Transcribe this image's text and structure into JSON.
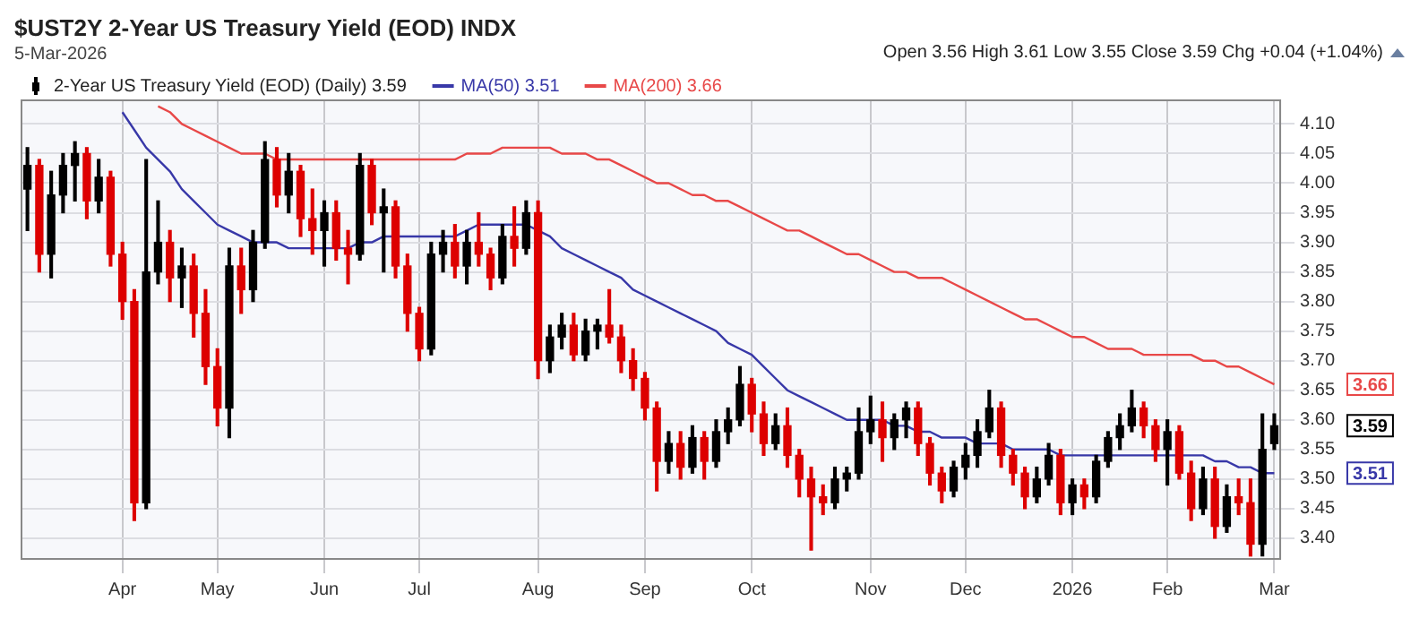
{
  "chart_data": {
    "type": "candlestick",
    "title": "$UST2Y 2-Year US Treasury Yield (EOD) INDX",
    "subtitle": "5-Mar-2026",
    "annotations": [
      "Open 3.56 High 3.61 Low 3.55 Close 3.59 Chg +0.04 (+1.04%)",
      "3.66",
      "3.59",
      "3.51"
    ],
    "categories": [
      null,
      null,
      null,
      null,
      null,
      null,
      null,
      null,
      "Apr",
      null,
      null,
      null,
      null,
      null,
      null,
      null,
      "May",
      null,
      null,
      null,
      null,
      null,
      null,
      null,
      null,
      "Jun",
      null,
      null,
      null,
      null,
      null,
      null,
      null,
      "Jul",
      null,
      null,
      null,
      null,
      null,
      null,
      null,
      null,
      null,
      "Aug",
      null,
      null,
      null,
      null,
      null,
      null,
      null,
      null,
      "Sep",
      null,
      null,
      null,
      null,
      null,
      null,
      null,
      null,
      "Oct",
      null,
      null,
      null,
      null,
      null,
      null,
      null,
      null,
      null,
      "Nov",
      null,
      null,
      null,
      null,
      null,
      null,
      null,
      "Dec",
      null,
      null,
      null,
      null,
      null,
      null,
      null,
      null,
      "2026",
      null,
      null,
      null,
      null,
      null,
      null,
      null,
      "Feb",
      null,
      null,
      null,
      null,
      null,
      null,
      null,
      null,
      "Mar"
    ],
    "series": [
      {
        "name": "2-Year US Treasury Yield (EOD) (Daily) 3.59",
        "color": "#000000",
        "ohlc": [
          [
            3.99,
            4.06,
            3.92,
            4.03
          ],
          [
            4.03,
            4.04,
            3.85,
            3.88
          ],
          [
            3.88,
            4.02,
            3.84,
            3.98
          ],
          [
            3.98,
            4.05,
            3.95,
            4.03
          ],
          [
            4.03,
            4.07,
            3.97,
            4.05
          ],
          [
            4.05,
            4.06,
            3.94,
            3.97
          ],
          [
            3.97,
            4.04,
            3.95,
            4.01
          ],
          [
            4.01,
            4.02,
            3.86,
            3.88
          ],
          [
            3.88,
            3.9,
            3.77,
            3.8
          ],
          [
            3.8,
            3.82,
            3.43,
            3.46
          ],
          [
            3.46,
            4.04,
            3.45,
            3.85
          ],
          [
            3.85,
            3.97,
            3.83,
            3.9
          ],
          [
            3.9,
            3.92,
            3.8,
            3.84
          ],
          [
            3.84,
            3.89,
            3.79,
            3.86
          ],
          [
            3.86,
            3.88,
            3.74,
            3.78
          ],
          [
            3.78,
            3.82,
            3.66,
            3.69
          ],
          [
            3.69,
            3.72,
            3.59,
            3.62
          ],
          [
            3.62,
            3.89,
            3.57,
            3.86
          ],
          [
            3.86,
            3.89,
            3.78,
            3.82
          ],
          [
            3.82,
            3.92,
            3.8,
            3.9
          ],
          [
            3.9,
            4.07,
            3.89,
            4.04
          ],
          [
            4.04,
            4.06,
            3.96,
            3.98
          ],
          [
            3.98,
            4.05,
            3.95,
            4.02
          ],
          [
            4.02,
            4.03,
            3.91,
            3.94
          ],
          [
            3.94,
            3.99,
            3.88,
            3.92
          ],
          [
            3.92,
            3.97,
            3.86,
            3.95
          ],
          [
            3.95,
            3.97,
            3.87,
            3.89
          ],
          [
            3.89,
            3.92,
            3.83,
            3.88
          ],
          [
            3.88,
            4.05,
            3.87,
            4.03
          ],
          [
            4.03,
            4.04,
            3.93,
            3.95
          ],
          [
            3.95,
            3.99,
            3.85,
            3.96
          ],
          [
            3.96,
            3.97,
            3.84,
            3.86
          ],
          [
            3.86,
            3.88,
            3.75,
            3.78
          ],
          [
            3.78,
            3.79,
            3.7,
            3.72
          ],
          [
            3.72,
            3.9,
            3.71,
            3.88
          ],
          [
            3.88,
            3.92,
            3.85,
            3.9
          ],
          [
            3.9,
            3.93,
            3.84,
            3.86
          ],
          [
            3.86,
            3.92,
            3.83,
            3.9
          ],
          [
            3.9,
            3.95,
            3.86,
            3.88
          ],
          [
            3.88,
            3.89,
            3.82,
            3.84
          ],
          [
            3.84,
            3.93,
            3.83,
            3.91
          ],
          [
            3.91,
            3.96,
            3.86,
            3.89
          ],
          [
            3.89,
            3.97,
            3.88,
            3.95
          ],
          [
            3.95,
            3.97,
            3.67,
            3.7
          ],
          [
            3.7,
            3.76,
            3.68,
            3.74
          ],
          [
            3.74,
            3.78,
            3.72,
            3.76
          ],
          [
            3.76,
            3.78,
            3.7,
            3.71
          ],
          [
            3.71,
            3.77,
            3.7,
            3.75
          ],
          [
            3.75,
            3.77,
            3.72,
            3.76
          ],
          [
            3.76,
            3.82,
            3.73,
            3.74
          ],
          [
            3.74,
            3.76,
            3.68,
            3.7
          ],
          [
            3.7,
            3.72,
            3.65,
            3.67
          ],
          [
            3.67,
            3.68,
            3.6,
            3.62
          ],
          [
            3.62,
            3.63,
            3.48,
            3.53
          ],
          [
            3.53,
            3.58,
            3.51,
            3.56
          ],
          [
            3.56,
            3.58,
            3.5,
            3.52
          ],
          [
            3.52,
            3.59,
            3.51,
            3.57
          ],
          [
            3.57,
            3.58,
            3.5,
            3.53
          ],
          [
            3.53,
            3.6,
            3.52,
            3.58
          ],
          [
            3.58,
            3.62,
            3.56,
            3.6
          ],
          [
            3.6,
            3.69,
            3.59,
            3.66
          ],
          [
            3.66,
            3.67,
            3.58,
            3.61
          ],
          [
            3.61,
            3.63,
            3.54,
            3.56
          ],
          [
            3.56,
            3.61,
            3.55,
            3.59
          ],
          [
            3.59,
            3.62,
            3.52,
            3.54
          ],
          [
            3.54,
            3.55,
            3.47,
            3.5
          ],
          [
            3.5,
            3.52,
            3.38,
            3.47
          ],
          [
            3.47,
            3.49,
            3.44,
            3.46
          ],
          [
            3.46,
            3.52,
            3.45,
            3.5
          ],
          [
            3.5,
            3.52,
            3.48,
            3.51
          ],
          [
            3.51,
            3.62,
            3.5,
            3.58
          ],
          [
            3.58,
            3.64,
            3.56,
            3.6
          ],
          [
            3.6,
            3.63,
            3.53,
            3.57
          ],
          [
            3.57,
            3.61,
            3.55,
            3.6
          ],
          [
            3.6,
            3.63,
            3.57,
            3.62
          ],
          [
            3.62,
            3.63,
            3.54,
            3.56
          ],
          [
            3.56,
            3.57,
            3.49,
            3.51
          ],
          [
            3.51,
            3.52,
            3.46,
            3.48
          ],
          [
            3.48,
            3.53,
            3.47,
            3.52
          ],
          [
            3.52,
            3.56,
            3.5,
            3.54
          ],
          [
            3.54,
            3.6,
            3.52,
            3.58
          ],
          [
            3.58,
            3.65,
            3.57,
            3.62
          ],
          [
            3.62,
            3.63,
            3.52,
            3.54
          ],
          [
            3.54,
            3.55,
            3.49,
            3.51
          ],
          [
            3.51,
            3.52,
            3.45,
            3.47
          ],
          [
            3.47,
            3.52,
            3.46,
            3.5
          ],
          [
            3.5,
            3.56,
            3.49,
            3.54
          ],
          [
            3.54,
            3.55,
            3.44,
            3.46
          ],
          [
            3.46,
            3.5,
            3.44,
            3.49
          ],
          [
            3.49,
            3.5,
            3.45,
            3.47
          ],
          [
            3.47,
            3.54,
            3.46,
            3.53
          ],
          [
            3.53,
            3.58,
            3.52,
            3.57
          ],
          [
            3.57,
            3.61,
            3.55,
            3.59
          ],
          [
            3.59,
            3.65,
            3.58,
            3.62
          ],
          [
            3.62,
            3.63,
            3.57,
            3.59
          ],
          [
            3.59,
            3.6,
            3.53,
            3.55
          ],
          [
            3.55,
            3.6,
            3.49,
            3.58
          ],
          [
            3.58,
            3.59,
            3.5,
            3.51
          ],
          [
            3.51,
            3.53,
            3.43,
            3.45
          ],
          [
            3.45,
            3.52,
            3.44,
            3.5
          ],
          [
            3.5,
            3.52,
            3.4,
            3.42
          ],
          [
            3.42,
            3.49,
            3.41,
            3.47
          ],
          [
            3.47,
            3.5,
            3.44,
            3.46
          ],
          [
            3.46,
            3.5,
            3.37,
            3.39
          ],
          [
            3.39,
            3.61,
            3.37,
            3.55
          ],
          [
            3.56,
            3.61,
            3.55,
            3.59
          ]
        ],
        "colors": [
          "#000000",
          "#dd0000",
          "#000000",
          "#000000",
          "#000000",
          "#dd0000",
          "#000000",
          "#dd0000",
          "#dd0000",
          "#dd0000",
          "#000000",
          "#000000",
          "#dd0000",
          "#000000",
          "#dd0000",
          "#dd0000",
          "#dd0000",
          "#000000",
          "#dd0000",
          "#000000",
          "#000000",
          "#dd0000",
          "#000000",
          "#dd0000",
          "#dd0000",
          "#000000",
          "#dd0000",
          "#dd0000",
          "#000000",
          "#dd0000",
          "#000000",
          "#dd0000",
          "#dd0000",
          "#dd0000",
          "#000000",
          "#000000",
          "#dd0000",
          "#000000",
          "#dd0000",
          "#dd0000",
          "#000000",
          "#dd0000",
          "#000000",
          "#dd0000",
          "#000000",
          "#000000",
          "#dd0000",
          "#000000",
          "#000000",
          "#dd0000",
          "#dd0000",
          "#dd0000",
          "#dd0000",
          "#dd0000",
          "#000000",
          "#dd0000",
          "#000000",
          "#dd0000",
          "#000000",
          "#000000",
          "#000000",
          "#dd0000",
          "#dd0000",
          "#000000",
          "#dd0000",
          "#dd0000",
          "#dd0000",
          "#dd0000",
          "#000000",
          "#000000",
          "#000000",
          "#000000",
          "#dd0000",
          "#000000",
          "#000000",
          "#dd0000",
          "#dd0000",
          "#dd0000",
          "#000000",
          "#000000",
          "#000000",
          "#000000",
          "#dd0000",
          "#dd0000",
          "#dd0000",
          "#000000",
          "#000000",
          "#dd0000",
          "#000000",
          "#dd0000",
          "#000000",
          "#000000",
          "#000000",
          "#000000",
          "#dd0000",
          "#dd0000",
          "#000000",
          "#dd0000",
          "#dd0000",
          "#000000",
          "#dd0000",
          "#000000",
          "#dd0000",
          "#dd0000",
          "#000000",
          "#000000"
        ]
      },
      {
        "type": "line",
        "name": "MA(50) 3.51",
        "color": "#3838a8",
        "values": [
          null,
          null,
          null,
          null,
          null,
          null,
          null,
          null,
          4.12,
          4.09,
          4.06,
          4.04,
          4.02,
          3.99,
          3.97,
          3.95,
          3.93,
          3.92,
          3.91,
          3.9,
          3.9,
          3.9,
          3.89,
          3.89,
          3.89,
          3.89,
          3.89,
          3.89,
          3.9,
          3.9,
          3.91,
          3.91,
          3.91,
          3.91,
          3.91,
          3.91,
          3.91,
          3.92,
          3.93,
          3.93,
          3.93,
          3.93,
          3.93,
          3.92,
          3.91,
          3.89,
          3.88,
          3.87,
          3.86,
          3.85,
          3.84,
          3.82,
          3.81,
          3.8,
          3.79,
          3.78,
          3.77,
          3.76,
          3.75,
          3.73,
          3.72,
          3.71,
          3.69,
          3.67,
          3.65,
          3.64,
          3.63,
          3.62,
          3.61,
          3.6,
          3.6,
          3.6,
          3.6,
          3.59,
          3.59,
          3.58,
          3.58,
          3.57,
          3.57,
          3.57,
          3.56,
          3.56,
          3.56,
          3.55,
          3.55,
          3.55,
          3.55,
          3.54,
          3.54,
          3.54,
          3.54,
          3.54,
          3.54,
          3.54,
          3.54,
          3.54,
          3.54,
          3.54,
          3.54,
          3.54,
          3.53,
          3.53,
          3.52,
          3.52,
          3.51,
          3.51
        ]
      },
      {
        "type": "line",
        "name": "MA(200) 3.66",
        "color": "#e84848",
        "values": [
          null,
          null,
          null,
          null,
          null,
          null,
          null,
          null,
          null,
          null,
          null,
          4.13,
          4.12,
          4.1,
          4.09,
          4.08,
          4.07,
          4.06,
          4.05,
          4.05,
          4.05,
          4.04,
          4.04,
          4.04,
          4.04,
          4.04,
          4.04,
          4.04,
          4.04,
          4.04,
          4.04,
          4.04,
          4.04,
          4.04,
          4.04,
          4.04,
          4.04,
          4.05,
          4.05,
          4.05,
          4.06,
          4.06,
          4.06,
          4.06,
          4.06,
          4.05,
          4.05,
          4.05,
          4.04,
          4.04,
          4.03,
          4.02,
          4.01,
          4.0,
          4.0,
          3.99,
          3.98,
          3.98,
          3.97,
          3.97,
          3.96,
          3.95,
          3.94,
          3.93,
          3.92,
          3.92,
          3.91,
          3.9,
          3.89,
          3.88,
          3.88,
          3.87,
          3.86,
          3.85,
          3.85,
          3.84,
          3.84,
          3.84,
          3.83,
          3.82,
          3.81,
          3.8,
          3.79,
          3.78,
          3.77,
          3.77,
          3.76,
          3.75,
          3.74,
          3.74,
          3.73,
          3.72,
          3.72,
          3.72,
          3.71,
          3.71,
          3.71,
          3.71,
          3.71,
          3.7,
          3.7,
          3.69,
          3.69,
          3.68,
          3.67,
          3.66
        ]
      }
    ],
    "ylim": [
      3.365,
      4.14
    ],
    "yticks": [
      {
        "value": 3.4,
        "label": "3.40"
      },
      {
        "value": 3.45,
        "label": "3.45"
      },
      {
        "value": 3.5,
        "label": "3.50"
      },
      {
        "value": 3.55,
        "label": "3.55"
      },
      {
        "value": 3.6,
        "label": "3.60"
      },
      {
        "value": 3.65,
        "label": "3.65"
      },
      {
        "value": 3.7,
        "label": "3.70"
      },
      {
        "value": 3.75,
        "label": "3.75"
      },
      {
        "value": 3.8,
        "label": "3.80"
      },
      {
        "value": 3.85,
        "label": "3.85"
      },
      {
        "value": 3.9,
        "label": "3.90"
      },
      {
        "value": 3.95,
        "label": "3.95"
      },
      {
        "value": 4.0,
        "label": "4.00"
      },
      {
        "value": 4.05,
        "label": "4.05"
      },
      {
        "value": 4.1,
        "label": "4.10"
      }
    ],
    "grid": true,
    "legend": "top left"
  }
}
